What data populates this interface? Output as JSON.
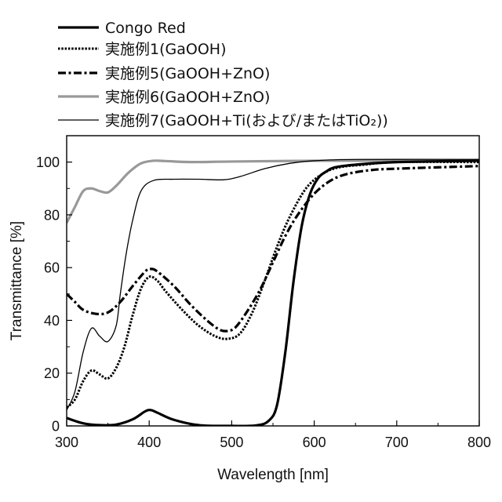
{
  "chart_data": {
    "type": "line",
    "title": "",
    "xlabel": "Wavelength [nm]",
    "ylabel": "Transmittance [%]",
    "xlim": [
      300,
      800
    ],
    "ylim": [
      0,
      110
    ],
    "xticks": [
      300,
      400,
      500,
      600,
      700,
      800
    ],
    "yticks": [
      0,
      20,
      40,
      60,
      80,
      100
    ],
    "grid": false,
    "legend": "top-left, above plot",
    "series": [
      {
        "name": "Congo Red",
        "color": "#000000",
        "style": "solid-thick",
        "points": [
          [
            300,
            3
          ],
          [
            320,
            1
          ],
          [
            340,
            0.3
          ],
          [
            360,
            0.5
          ],
          [
            380,
            2.5
          ],
          [
            395,
            5.5
          ],
          [
            402,
            6
          ],
          [
            410,
            5
          ],
          [
            430,
            2.3
          ],
          [
            460,
            0.3
          ],
          [
            500,
            0
          ],
          [
            530,
            0.2
          ],
          [
            545,
            2
          ],
          [
            555,
            8
          ],
          [
            565,
            28
          ],
          [
            575,
            55
          ],
          [
            585,
            76
          ],
          [
            595,
            88
          ],
          [
            605,
            94
          ],
          [
            615,
            96.5
          ],
          [
            625,
            98
          ],
          [
            650,
            99
          ],
          [
            700,
            100
          ],
          [
            800,
            100.5
          ]
        ]
      },
      {
        "name": "実施例1(GaOOH)",
        "color": "#000000",
        "style": "dotted",
        "points": [
          [
            300,
            7
          ],
          [
            310,
            10
          ],
          [
            320,
            17
          ],
          [
            330,
            21
          ],
          [
            340,
            19.5
          ],
          [
            350,
            18
          ],
          [
            360,
            22
          ],
          [
            370,
            30
          ],
          [
            380,
            42
          ],
          [
            390,
            52
          ],
          [
            400,
            56.5
          ],
          [
            410,
            55
          ],
          [
            420,
            51
          ],
          [
            440,
            44
          ],
          [
            460,
            38
          ],
          [
            480,
            34
          ],
          [
            495,
            33
          ],
          [
            510,
            35
          ],
          [
            525,
            43
          ],
          [
            540,
            55
          ],
          [
            555,
            68
          ],
          [
            570,
            79
          ],
          [
            590,
            90
          ],
          [
            610,
            95.5
          ],
          [
            630,
            98
          ],
          [
            660,
            99
          ],
          [
            700,
            100
          ],
          [
            800,
            100
          ]
        ]
      },
      {
        "name": "実施例5(GaOOH+ZnO)",
        "color": "#000000",
        "style": "dash-dot",
        "points": [
          [
            300,
            50
          ],
          [
            310,
            47
          ],
          [
            320,
            44
          ],
          [
            335,
            42.5
          ],
          [
            350,
            43
          ],
          [
            365,
            47
          ],
          [
            380,
            53
          ],
          [
            395,
            58.5
          ],
          [
            402,
            59.5
          ],
          [
            410,
            58.5
          ],
          [
            430,
            53
          ],
          [
            450,
            46
          ],
          [
            470,
            40
          ],
          [
            485,
            36.5
          ],
          [
            495,
            36
          ],
          [
            505,
            37.5
          ],
          [
            520,
            44
          ],
          [
            535,
            52
          ],
          [
            550,
            62
          ],
          [
            565,
            72
          ],
          [
            580,
            80
          ],
          [
            600,
            88
          ],
          [
            620,
            93
          ],
          [
            640,
            95.5
          ],
          [
            670,
            97
          ],
          [
            700,
            97.5
          ],
          [
            800,
            98.5
          ]
        ]
      },
      {
        "name": "実施例6(GaOOH+ZnO)",
        "color": "#999999",
        "style": "solid-gray",
        "points": [
          [
            300,
            77
          ],
          [
            310,
            83
          ],
          [
            320,
            89
          ],
          [
            330,
            90
          ],
          [
            340,
            89
          ],
          [
            350,
            88.5
          ],
          [
            360,
            91
          ],
          [
            375,
            96
          ],
          [
            390,
            99.5
          ],
          [
            405,
            100.5
          ],
          [
            420,
            100.4
          ],
          [
            450,
            100
          ],
          [
            500,
            100.2
          ],
          [
            600,
            100.5
          ],
          [
            700,
            100.5
          ],
          [
            800,
            100.8
          ]
        ]
      },
      {
        "name": "実施例7(GaOOH+Ti(および/またはTiO₂))",
        "color": "#000000",
        "style": "solid-thin",
        "points": [
          [
            300,
            6
          ],
          [
            310,
            13
          ],
          [
            320,
            28
          ],
          [
            330,
            37
          ],
          [
            340,
            34
          ],
          [
            350,
            32
          ],
          [
            360,
            38
          ],
          [
            365,
            50
          ],
          [
            372,
            65
          ],
          [
            380,
            78
          ],
          [
            390,
            89
          ],
          [
            405,
            93
          ],
          [
            430,
            93.5
          ],
          [
            460,
            93.5
          ],
          [
            490,
            93.3
          ],
          [
            510,
            94.5
          ],
          [
            540,
            97.5
          ],
          [
            570,
            99.5
          ],
          [
            600,
            100.5
          ],
          [
            650,
            101
          ],
          [
            800,
            101
          ]
        ]
      }
    ]
  }
}
